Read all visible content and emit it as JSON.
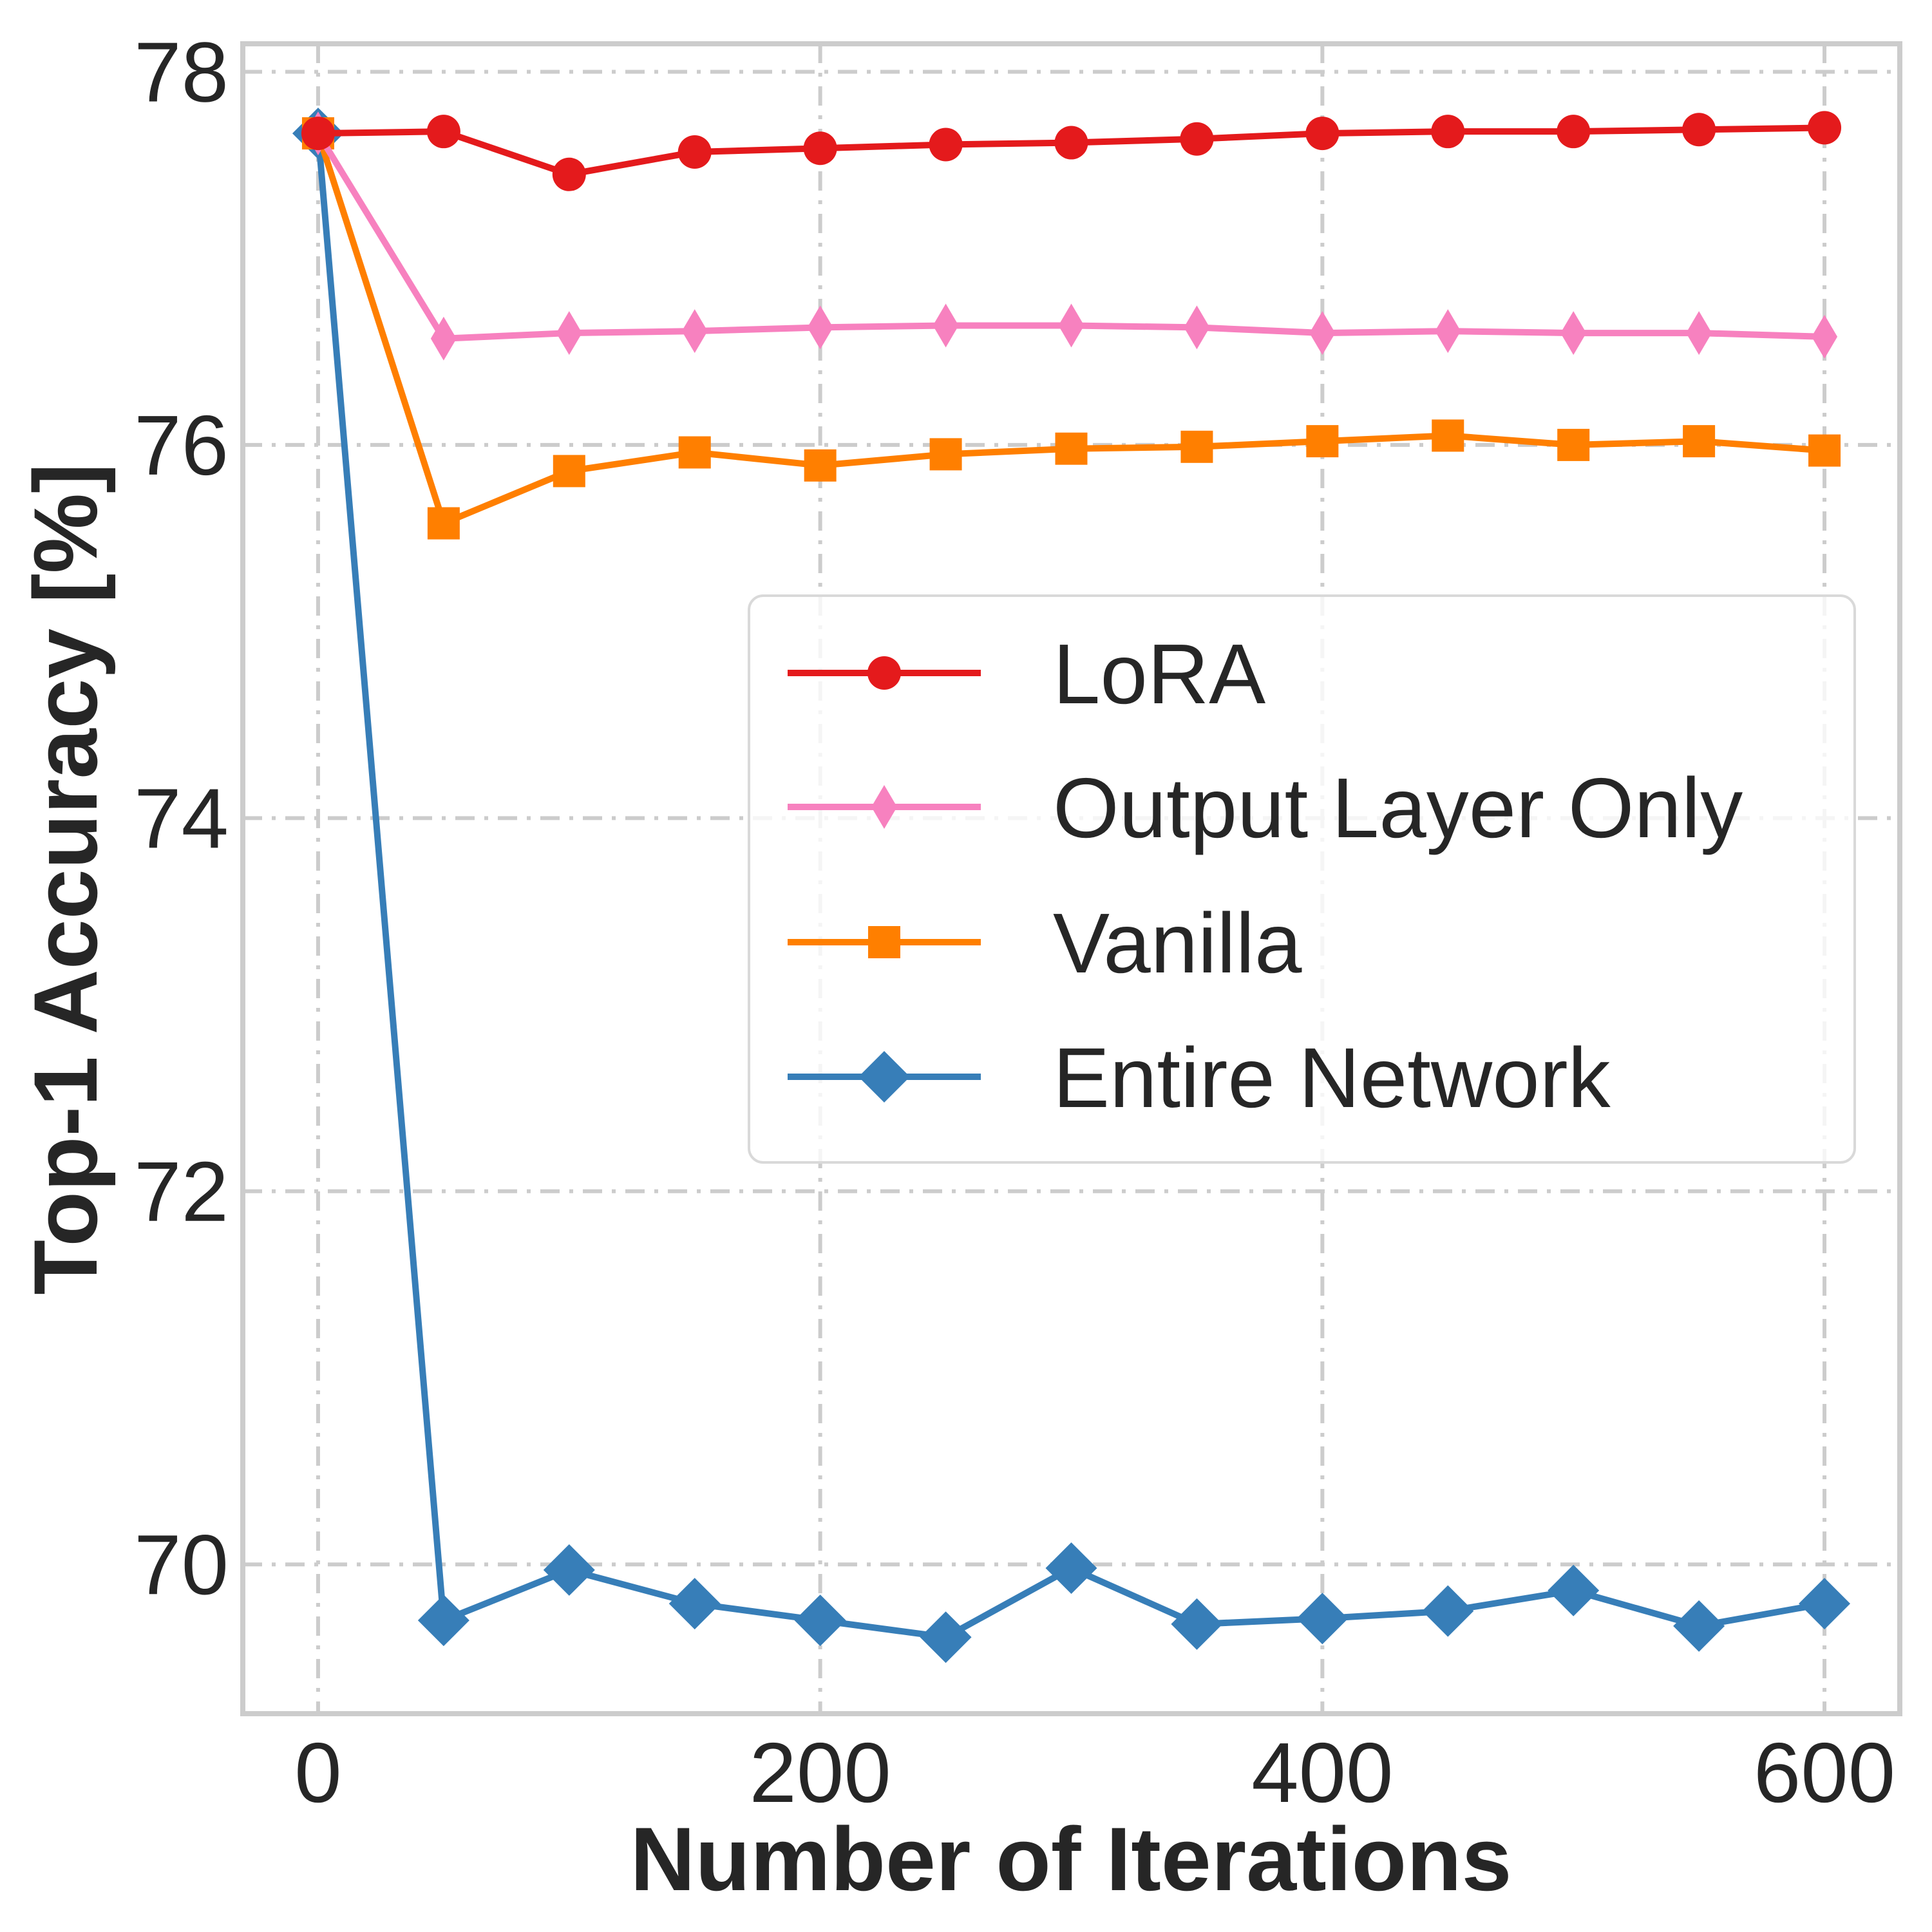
{
  "chart_data": {
    "type": "line",
    "title": "",
    "xlabel": "Number of Iterations",
    "ylabel": "Top-1 Accuracy [%]",
    "xlim": [
      -30,
      630
    ],
    "ylim": [
      69.2,
      78.15
    ],
    "xticks": [
      0,
      200,
      400,
      600
    ],
    "yticks": [
      70,
      72,
      74,
      76,
      78
    ],
    "grid": true,
    "legend_position": "center-right",
    "x": [
      0,
      50,
      100,
      150,
      200,
      250,
      300,
      350,
      400,
      450,
      500,
      550,
      600
    ],
    "series": [
      {
        "name": "LoRA",
        "marker": "circle",
        "color": "#e41a1c",
        "values": [
          77.67,
          77.68,
          77.45,
          77.57,
          77.59,
          77.61,
          77.62,
          77.64,
          77.67,
          77.68,
          77.68,
          77.69,
          77.7
        ]
      },
      {
        "name": "Output Layer Only",
        "marker": "thin-diamond",
        "color": "#f781bf",
        "values": [
          77.67,
          76.57,
          76.6,
          76.61,
          76.63,
          76.64,
          76.64,
          76.63,
          76.6,
          76.61,
          76.6,
          76.6,
          76.58
        ]
      },
      {
        "name": "Vanilla",
        "marker": "square",
        "color": "#ff7f00",
        "values": [
          77.67,
          75.58,
          75.86,
          75.96,
          75.89,
          75.95,
          75.98,
          75.99,
          76.02,
          76.05,
          76.0,
          76.02,
          75.97
        ]
      },
      {
        "name": "Entire Network",
        "marker": "diamond",
        "color": "#377eb8",
        "values": [
          77.67,
          69.7,
          69.97,
          69.79,
          69.7,
          69.61,
          69.98,
          69.68,
          69.71,
          69.75,
          69.86,
          69.67,
          69.79
        ]
      }
    ]
  }
}
